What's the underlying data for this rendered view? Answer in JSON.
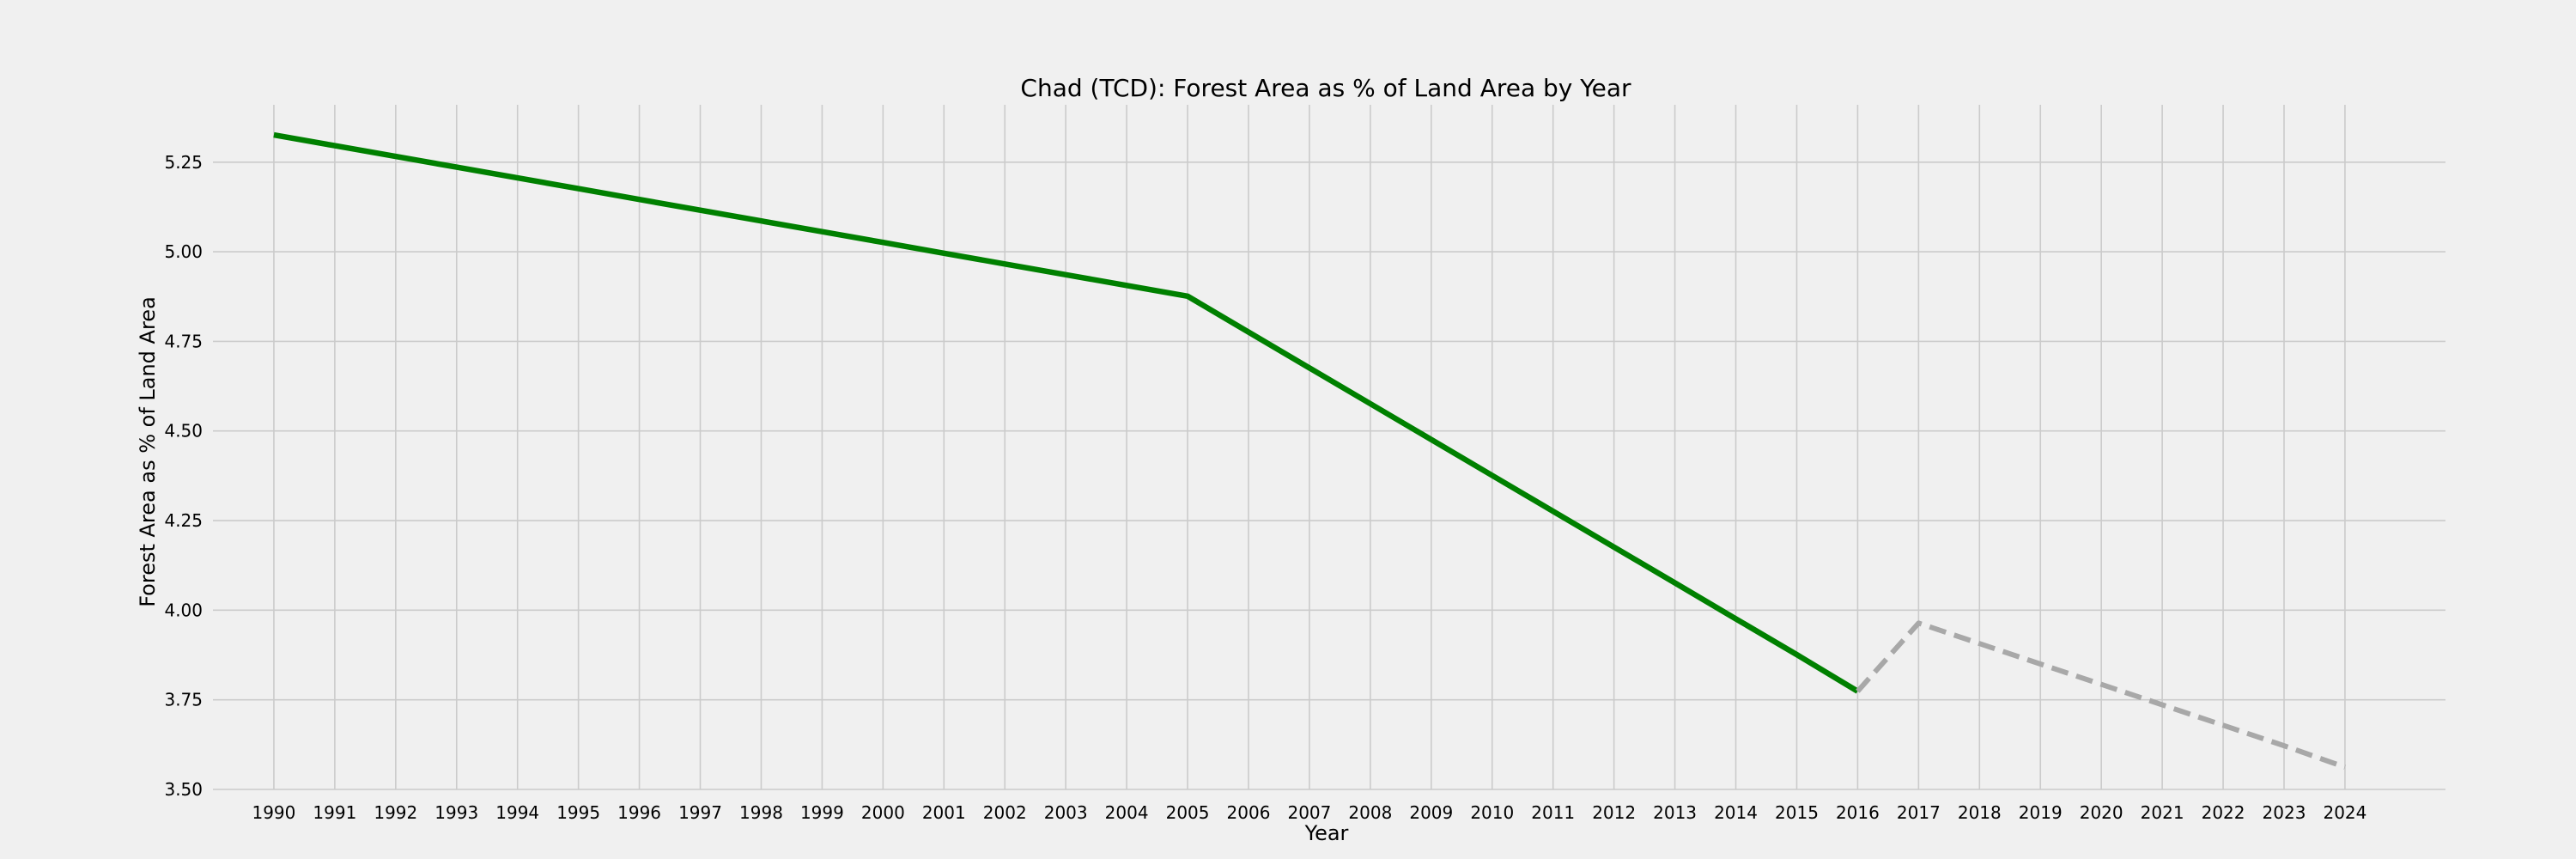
{
  "chart_data": {
    "type": "line",
    "title": "Chad (TCD): Forest Area as % of Land Area by Year",
    "xlabel": "Year",
    "ylabel": "Forest Area as % of Land Area",
    "x": [
      1990,
      1991,
      1992,
      1993,
      1994,
      1995,
      1996,
      1997,
      1998,
      1999,
      2000,
      2001,
      2002,
      2003,
      2004,
      2005,
      2006,
      2007,
      2008,
      2009,
      2010,
      2011,
      2012,
      2013,
      2014,
      2015,
      2016,
      2017,
      2018,
      2019,
      2020,
      2021,
      2022,
      2023,
      2024
    ],
    "xlim": [
      1989,
      2025.65
    ],
    "ylim": [
      3.5,
      5.41
    ],
    "yticks": [
      3.5,
      3.75,
      4.0,
      4.25,
      4.5,
      4.75,
      5.0,
      5.25
    ],
    "grid": true,
    "series": [
      {
        "color": "#008000",
        "style": "solid",
        "x": [
          1990,
          1991,
          1992,
          1993,
          1994,
          1995,
          1996,
          1997,
          1998,
          1999,
          2000,
          2001,
          2002,
          2003,
          2004,
          2005,
          2006,
          2007,
          2008,
          2009,
          2010,
          2011,
          2012,
          2013,
          2014,
          2015,
          2016
        ],
        "values": [
          5.326,
          5.296,
          5.266,
          5.236,
          5.206,
          5.176,
          5.146,
          5.116,
          5.086,
          5.056,
          5.026,
          4.996,
          4.966,
          4.936,
          4.906,
          4.876,
          4.776,
          4.676,
          4.576,
          4.476,
          4.376,
          4.276,
          4.176,
          4.076,
          3.976,
          3.876,
          3.774
        ]
      },
      {
        "color": "#a8a8a8",
        "style": "dashed",
        "x": [
          2016,
          2017,
          2018,
          2019,
          2020,
          2021,
          2022,
          2023,
          2024
        ],
        "values": [
          3.774,
          3.964,
          3.907,
          3.85,
          3.793,
          3.736,
          3.679,
          3.622,
          3.562
        ]
      }
    ]
  }
}
